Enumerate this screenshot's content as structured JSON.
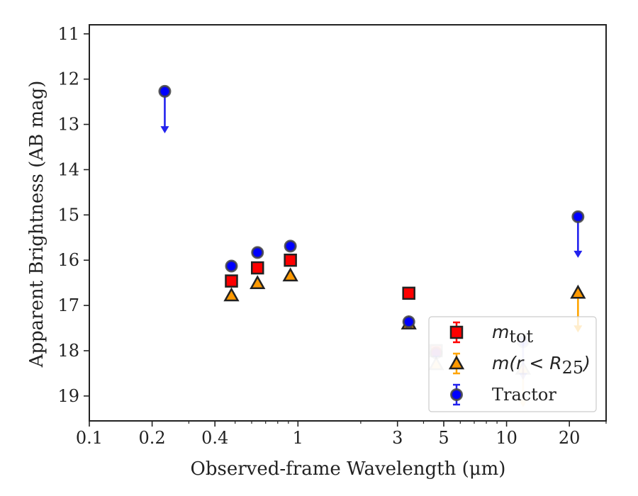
{
  "chart_data": {
    "type": "scatter",
    "xlabel": "Observed-frame Wavelength (μm)",
    "ylabel": "Apparent Brightness (AB mag)",
    "xscale": "log",
    "xlim": [
      0.1,
      30
    ],
    "ylim": [
      19.55,
      10.8
    ],
    "y_inverted": true,
    "x_ticks": [
      {
        "value": 0.1,
        "label": "0.1"
      },
      {
        "value": 0.2,
        "label": "0.2"
      },
      {
        "value": 0.4,
        "label": "0.4"
      },
      {
        "value": 1,
        "label": "1"
      },
      {
        "value": 3,
        "label": "3"
      },
      {
        "value": 5,
        "label": "5"
      },
      {
        "value": 10,
        "label": "10"
      },
      {
        "value": 20,
        "label": "20"
      }
    ],
    "x_minor_ticks": [
      0.3,
      0.5,
      0.6,
      0.7,
      0.8,
      0.9,
      2,
      4,
      6,
      7,
      8,
      9,
      30
    ],
    "y_ticks": [
      {
        "value": 11,
        "label": "11"
      },
      {
        "value": 12,
        "label": "12"
      },
      {
        "value": 13,
        "label": "13"
      },
      {
        "value": 14,
        "label": "14"
      },
      {
        "value": 15,
        "label": "15"
      },
      {
        "value": 16,
        "label": "16"
      },
      {
        "value": 17,
        "label": "17"
      },
      {
        "value": 18,
        "label": "18"
      },
      {
        "value": 19,
        "label": "19"
      }
    ],
    "legend_position": "lower-right",
    "series": [
      {
        "name": "m_tot",
        "marker": "square",
        "color": "#ff0000",
        "edge": "#222222",
        "points": [
          {
            "x": 0.48,
            "y": 16.46
          },
          {
            "x": 0.64,
            "y": 16.17
          },
          {
            "x": 0.92,
            "y": 16.0
          },
          {
            "x": 3.4,
            "y": 16.73
          },
          {
            "x": 4.6,
            "y": 18.0,
            "faded": true
          }
        ]
      },
      {
        "name": "m(r < R25)",
        "marker": "triangle",
        "color": "#ff9900",
        "edge": "#222222",
        "points": [
          {
            "x": 0.48,
            "y": 16.78
          },
          {
            "x": 0.64,
            "y": 16.51
          },
          {
            "x": 0.92,
            "y": 16.34
          },
          {
            "x": 3.4,
            "y": 17.4
          },
          {
            "x": 4.6,
            "y": 18.3,
            "faded": true
          },
          {
            "x": 12.0,
            "y": 18.4,
            "faded": true,
            "upper_limit": true,
            "limit_to": 19.2
          },
          {
            "x": 22.0,
            "y": 16.72,
            "upper_limit": true,
            "limit_to": 17.55
          }
        ]
      },
      {
        "name": "Tractor",
        "marker": "circle",
        "color": "#0000ff",
        "edge": "#222222",
        "points": [
          {
            "x": 0.23,
            "y": 12.27,
            "upper_limit": true,
            "limit_to": 13.15
          },
          {
            "x": 0.48,
            "y": 16.13
          },
          {
            "x": 0.64,
            "y": 15.83
          },
          {
            "x": 0.92,
            "y": 15.69
          },
          {
            "x": 3.4,
            "y": 17.36
          },
          {
            "x": 4.6,
            "y": 18.05,
            "faded": true
          },
          {
            "x": 12.0,
            "y": 17.8,
            "faded": true,
            "upper_limit": true,
            "limit_to": 18.6
          },
          {
            "x": 22.0,
            "y": 15.04,
            "upper_limit": true,
            "limit_to": 15.9
          }
        ]
      }
    ]
  },
  "legend": {
    "entries": [
      {
        "kind": "square",
        "math": "m",
        "sub": "tot",
        "text": ""
      },
      {
        "kind": "triangle",
        "math": "m(r < R",
        "sub": "25",
        "text": ")"
      },
      {
        "kind": "circle",
        "math": "",
        "sub": "",
        "text": "Tractor"
      }
    ]
  }
}
